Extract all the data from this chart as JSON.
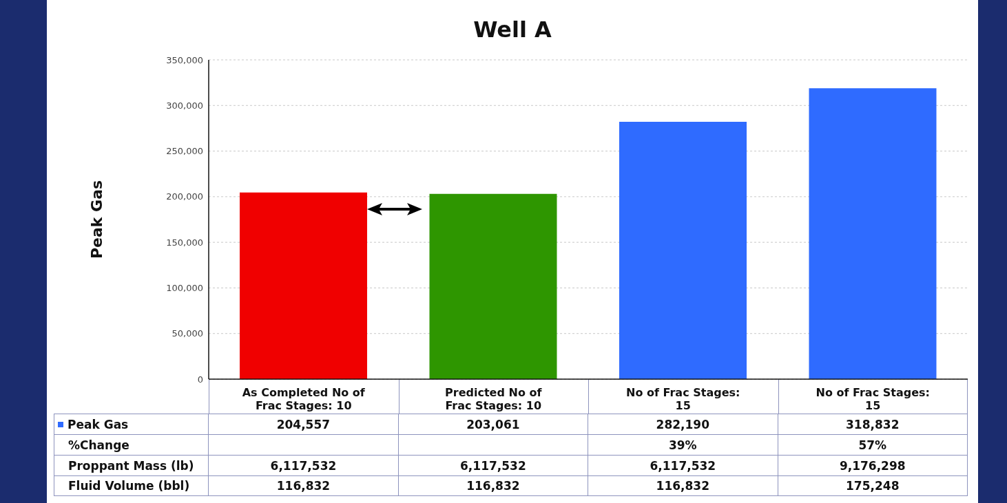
{
  "chart_data": {
    "type": "bar",
    "title": "Well A",
    "ylabel": "Peak Gas",
    "categories": [
      "As Completed No of Frac Stages: 10",
      "Predicted No of Frac Stages: 10",
      "No of Frac Stages: 15",
      "No of Frac Stages: 15"
    ],
    "series": [
      {
        "name": "Peak Gas",
        "color": "#2f6bff",
        "colors": [
          "#f00000",
          "#2e9600",
          "#2f6bff",
          "#2f6bff"
        ],
        "values": [
          204557,
          203061,
          282190,
          318832
        ],
        "value_labels": [
          "204,557",
          "203,061",
          "282,190",
          "318,832"
        ]
      }
    ],
    "ylim": [
      0,
      350000
    ],
    "yticks": [
      0,
      {
        "value": 50000,
        "label": "50,000"
      },
      {
        "value": 100000,
        "label": "100,000"
      },
      {
        "value": 150000,
        "label": "150,000"
      },
      {
        "value": 200000,
        "label": "200,000"
      },
      {
        "value": 250000,
        "label": "250,000"
      },
      {
        "value": 300000,
        "label": "300,000"
      },
      {
        "value": 350000,
        "label": "350,000"
      }
    ],
    "grid": "y",
    "legend": "bottom",
    "annotations": [
      "%Change",
      "39%",
      "57%",
      "Proppant Mass (lb)",
      "6,117,532",
      "6,117,532",
      "6,117,532",
      "9,176,298",
      "Fluid Volume (bbl)",
      "116,832",
      "116,832",
      "116,832",
      "175,248"
    ]
  }
}
